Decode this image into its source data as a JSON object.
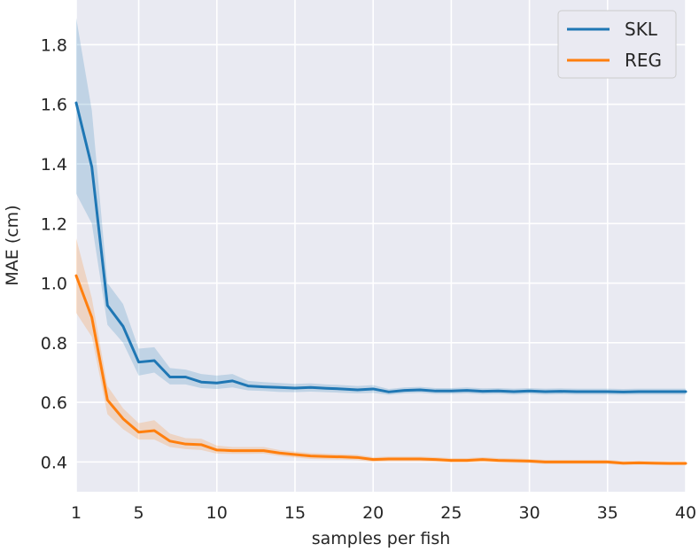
{
  "chart_data": {
    "type": "line",
    "xlabel": "samples per fish",
    "ylabel": "MAE (cm)",
    "xlim": [
      1,
      40
    ],
    "ylim": [
      0.3,
      1.95
    ],
    "xticks": [
      1,
      5,
      10,
      15,
      20,
      25,
      30,
      35,
      40
    ],
    "yticks": [
      0.4,
      0.6,
      0.8,
      1.0,
      1.2,
      1.4,
      1.6,
      1.8
    ],
    "ytick_labels": [
      "0.4",
      "0.6",
      "0.8",
      "1.0",
      "1.2",
      "1.4",
      "1.6",
      "1.8"
    ],
    "grid": true,
    "legend_position": "top-right",
    "background": "#e9eaf2",
    "x": [
      1,
      2,
      3,
      4,
      5,
      6,
      7,
      8,
      9,
      10,
      11,
      12,
      13,
      14,
      15,
      16,
      17,
      18,
      19,
      20,
      21,
      22,
      23,
      24,
      25,
      26,
      27,
      28,
      29,
      30,
      31,
      32,
      33,
      34,
      35,
      36,
      37,
      38,
      39,
      40
    ],
    "series": [
      {
        "name": "SKL",
        "color": "#1f77b4",
        "values": [
          1.605,
          1.39,
          0.925,
          0.855,
          0.735,
          0.74,
          0.685,
          0.685,
          0.668,
          0.665,
          0.672,
          0.655,
          0.652,
          0.65,
          0.648,
          0.65,
          0.647,
          0.645,
          0.642,
          0.645,
          0.635,
          0.64,
          0.642,
          0.638,
          0.638,
          0.64,
          0.637,
          0.638,
          0.636,
          0.638,
          0.636,
          0.637,
          0.636,
          0.636,
          0.636,
          0.635,
          0.636,
          0.636,
          0.636,
          0.636
        ],
        "lower": [
          1.3,
          1.2,
          0.86,
          0.8,
          0.69,
          0.7,
          0.66,
          0.66,
          0.648,
          0.645,
          0.65,
          0.64,
          0.638,
          0.635,
          0.634,
          0.636,
          0.634,
          0.632,
          0.63,
          0.632,
          0.625,
          0.63,
          0.632,
          0.628,
          0.628,
          0.63,
          0.627,
          0.628,
          0.626,
          0.628,
          0.626,
          0.627,
          0.626,
          0.626,
          0.626,
          0.625,
          0.626,
          0.626,
          0.626,
          0.626
        ],
        "upper": [
          1.89,
          1.58,
          1.0,
          0.93,
          0.78,
          0.785,
          0.715,
          0.71,
          0.695,
          0.69,
          0.695,
          0.672,
          0.668,
          0.665,
          0.662,
          0.664,
          0.66,
          0.658,
          0.655,
          0.658,
          0.645,
          0.65,
          0.652,
          0.648,
          0.648,
          0.65,
          0.647,
          0.648,
          0.646,
          0.648,
          0.646,
          0.647,
          0.646,
          0.646,
          0.646,
          0.645,
          0.646,
          0.646,
          0.646,
          0.646
        ]
      },
      {
        "name": "REG",
        "color": "#ff7f0e",
        "values": [
          1.025,
          0.885,
          0.608,
          0.545,
          0.5,
          0.505,
          0.47,
          0.46,
          0.458,
          0.44,
          0.438,
          0.438,
          0.438,
          0.43,
          0.425,
          0.42,
          0.418,
          0.417,
          0.415,
          0.408,
          0.41,
          0.41,
          0.41,
          0.408,
          0.405,
          0.405,
          0.408,
          0.405,
          0.404,
          0.403,
          0.4,
          0.4,
          0.4,
          0.4,
          0.4,
          0.396,
          0.397,
          0.396,
          0.395,
          0.395
        ],
        "lower": [
          0.9,
          0.82,
          0.56,
          0.51,
          0.475,
          0.475,
          0.45,
          0.443,
          0.44,
          0.428,
          0.427,
          0.427,
          0.428,
          0.42,
          0.415,
          0.41,
          0.409,
          0.408,
          0.406,
          0.4,
          0.402,
          0.402,
          0.402,
          0.4,
          0.398,
          0.398,
          0.4,
          0.398,
          0.397,
          0.396,
          0.393,
          0.393,
          0.393,
          0.393,
          0.393,
          0.39,
          0.391,
          0.39,
          0.389,
          0.389
        ],
        "upper": [
          1.15,
          0.95,
          0.655,
          0.58,
          0.53,
          0.54,
          0.495,
          0.48,
          0.478,
          0.455,
          0.45,
          0.45,
          0.45,
          0.44,
          0.435,
          0.43,
          0.428,
          0.426,
          0.424,
          0.416,
          0.418,
          0.418,
          0.418,
          0.416,
          0.413,
          0.413,
          0.416,
          0.413,
          0.412,
          0.41,
          0.407,
          0.407,
          0.407,
          0.407,
          0.407,
          0.403,
          0.404,
          0.403,
          0.402,
          0.402
        ]
      }
    ]
  }
}
